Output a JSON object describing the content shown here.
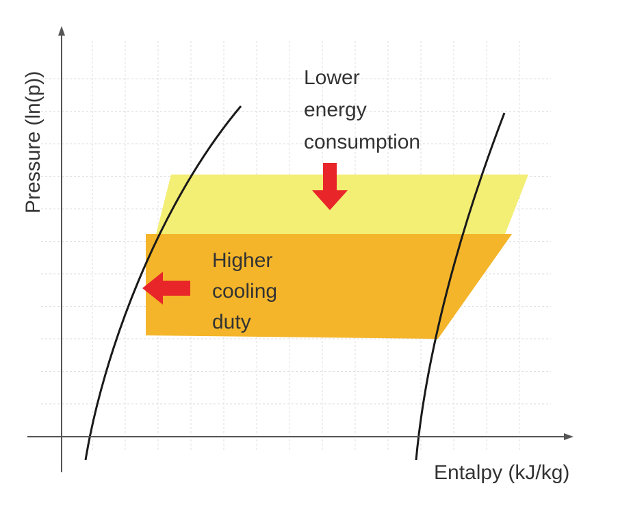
{
  "axes": {
    "y_label": "Pressure (ln(p))",
    "x_label": "Entalpy (kJ/kg)"
  },
  "annotations": {
    "top": [
      "Lower",
      "energy",
      "consumption"
    ],
    "left": [
      "Higher",
      "cooling",
      "duty"
    ]
  },
  "colors": {
    "upper_cycle": "#f3ee74",
    "lower_cycle": "#f4b52a",
    "arrow": "#e8262a",
    "curve": "#1a1a1a"
  }
}
